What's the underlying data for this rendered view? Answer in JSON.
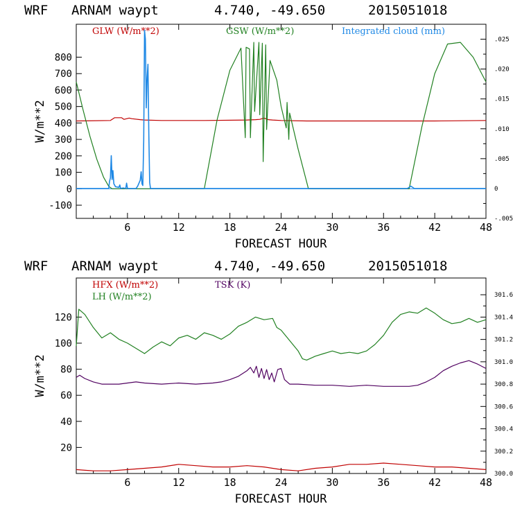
{
  "chart_data": [
    {
      "type": "line",
      "header": {
        "model": "WRF",
        "site": "ARNAM waypt",
        "coords": "4.740, -49.650",
        "run": "2015051018"
      },
      "xlabel": "FORECAST HOUR",
      "ylabel": "W/m**2",
      "xlim": [
        0,
        48
      ],
      "ylim": [
        -180,
        1000
      ],
      "y2lim": [
        -0.005,
        0.0275
      ],
      "xticks": [
        6,
        12,
        18,
        24,
        30,
        36,
        42,
        48
      ],
      "yticks": [
        -100,
        0,
        100,
        200,
        300,
        400,
        500,
        600,
        700,
        800
      ],
      "y2ticks": [
        -0.005,
        0,
        0.005,
        0.01,
        0.015,
        0.02,
        0.025
      ],
      "y2ticklabels": [
        "-.005",
        "0",
        ".005",
        ".010",
        ".015",
        ".020",
        ".025"
      ],
      "legend": [
        {
          "label": "GLW (W/m**2)",
          "color": "#c00000"
        },
        {
          "label": "GSW (W/m**2)",
          "color": "#208020"
        },
        {
          "label": "Integrated cloud (mm)",
          "color": "#1e88e5"
        }
      ],
      "series": [
        {
          "name": "GLW",
          "color": "#c00000",
          "axis": "left",
          "x": [
            0,
            4,
            4.5,
            5.3,
            5.6,
            6.2,
            6.5,
            7.5,
            8,
            10,
            15,
            20,
            21,
            21.5,
            22,
            22.5,
            23,
            24,
            27,
            30,
            36,
            42,
            48
          ],
          "y": [
            412,
            415,
            432,
            432,
            422,
            430,
            426,
            420,
            418,
            415,
            415,
            418,
            420,
            422,
            430,
            420,
            418,
            415,
            412,
            412,
            412,
            412,
            415
          ]
        },
        {
          "name": "GSW",
          "color": "#208020",
          "axis": "left",
          "x": [
            0,
            0.8,
            1.6,
            2.4,
            3.2,
            3.8,
            4.2,
            15.0,
            16.5,
            18,
            19.3,
            19.8,
            19.9,
            20.3,
            20.4,
            20.8,
            20.9,
            21.4,
            21.5,
            21.8,
            21.9,
            22.2,
            22.3,
            22.7,
            23.5,
            24.0,
            24.6,
            24.7,
            24.9,
            25.0,
            26,
            27.2,
            39.0,
            40.5,
            42,
            43.5,
            45,
            46.5,
            48
          ],
          "y": [
            650,
            480,
            320,
            180,
            70,
            15,
            0,
            0,
            420,
            720,
            855,
            310,
            860,
            850,
            310,
            890,
            470,
            890,
            450,
            885,
            165,
            875,
            360,
            780,
            660,
            500,
            370,
            525,
            300,
            460,
            240,
            0,
            0,
            380,
            700,
            880,
            890,
            800,
            650
          ]
        },
        {
          "name": "Integrated cloud",
          "color": "#1e88e5",
          "axis": "right",
          "x": [
            0,
            3.8,
            3.9,
            4.0,
            4.1,
            4.2,
            4.3,
            4.4,
            4.6,
            5.0,
            5.1,
            5.2,
            5.5,
            5.8,
            5.9,
            6.0,
            7.0,
            7.2,
            7.5,
            7.6,
            7.7,
            7.8,
            7.9,
            8.0,
            8.1,
            8.2,
            8.3,
            8.4,
            8.5,
            8.6,
            8.7,
            9.0,
            38.8,
            39.2,
            39.6,
            48
          ],
          "y": [
            0,
            0,
            0.0012,
            0.0018,
            0.0055,
            0.0015,
            0.003,
            0.0008,
            0.0003,
            0.0002,
            0.0006,
            0,
            0.0001,
            0,
            0.0009,
            0,
            0,
            0.0004,
            0.0014,
            0.0028,
            0.0008,
            0.0005,
            0.008,
            0.0265,
            0.025,
            0.0135,
            0.0185,
            0.0208,
            0.009,
            0.001,
            0,
            0,
            0,
            0.0004,
            0,
            0
          ]
        }
      ]
    },
    {
      "type": "line",
      "header": {
        "model": "WRF",
        "site": "ARNAM waypt",
        "coords": "4.740, -49.650",
        "run": "2015051018"
      },
      "xlabel": "FORECAST HOUR",
      "ylabel": "W/m**2",
      "xlim": [
        0,
        48
      ],
      "ylim": [
        0,
        150
      ],
      "y2lim": [
        300.0,
        301.75
      ],
      "xticks": [
        6,
        12,
        18,
        24,
        30,
        36,
        42,
        48
      ],
      "yticks": [
        20,
        40,
        60,
        80,
        100,
        120
      ],
      "y2ticks": [
        300.0,
        300.2,
        300.4,
        300.6,
        300.8,
        301.0,
        301.2,
        301.4,
        301.6
      ],
      "y2ticklabels": [
        "300.0",
        "300.2",
        "300.4",
        "300.6",
        "300.8",
        "301.0",
        "301.2",
        "301.4",
        "301.6"
      ],
      "legend": [
        {
          "label": "HFX (W/m**2)",
          "color": "#c00000"
        },
        {
          "label": "LH  (W/m**2)",
          "color": "#208020"
        },
        {
          "label": "TSK (K)",
          "color": "#500060"
        }
      ],
      "series": [
        {
          "name": "HFX",
          "color": "#c00000",
          "axis": "left",
          "x": [
            0,
            2,
            4,
            6,
            8,
            10,
            12,
            14,
            16,
            18,
            20,
            22,
            24,
            26,
            28,
            30,
            32,
            34,
            36,
            38,
            40,
            42,
            44,
            46,
            48
          ],
          "y": [
            3,
            2,
            2,
            3,
            4,
            5,
            7,
            6,
            5,
            5,
            6,
            5,
            3,
            2,
            4,
            5,
            7,
            7,
            8,
            7,
            6,
            5,
            5,
            4,
            3
          ]
        },
        {
          "name": "LH",
          "color": "#208020",
          "axis": "left",
          "x": [
            0,
            0.3,
            1,
            2,
            3,
            4,
            5,
            6,
            7,
            8,
            9,
            10,
            11,
            12,
            13,
            14,
            15,
            16,
            17,
            18,
            19,
            20,
            21,
            22,
            23,
            23.5,
            24,
            25,
            26,
            26.5,
            27,
            28,
            29,
            30,
            31,
            32,
            33,
            34,
            35,
            36,
            37,
            38,
            39,
            40,
            41,
            42,
            43,
            44,
            45,
            46,
            47,
            48
          ],
          "y": [
            98,
            126,
            122,
            112,
            104,
            108,
            103,
            100,
            96,
            92,
            97,
            101,
            98,
            104,
            106,
            103,
            108,
            106,
            103,
            107,
            113,
            116,
            120,
            118,
            119,
            112,
            110,
            102,
            94,
            88,
            87,
            90,
            92,
            94,
            92,
            93,
            92,
            94,
            99,
            106,
            116,
            122,
            124,
            123,
            127,
            123,
            118,
            115,
            116,
            119,
            116,
            118
          ]
        },
        {
          "name": "TSK",
          "color": "#500060",
          "axis": "right",
          "x": [
            0,
            0.4,
            1,
            2,
            3,
            4,
            5,
            6,
            7,
            8,
            10,
            12,
            14,
            16,
            17,
            18,
            19,
            20,
            20.4,
            20.8,
            21.1,
            21.4,
            21.7,
            22.0,
            22.3,
            22.6,
            22.9,
            23.2,
            23.6,
            24.0,
            24.4,
            25,
            26,
            28,
            30,
            32,
            34,
            36,
            38,
            39,
            40,
            41,
            42,
            43,
            44,
            45,
            46,
            47,
            48
          ],
          "y": [
            300.86,
            300.88,
            300.85,
            300.82,
            300.8,
            300.8,
            300.8,
            300.81,
            300.82,
            300.81,
            300.8,
            300.81,
            300.8,
            300.81,
            300.82,
            300.84,
            300.87,
            300.92,
            300.95,
            300.9,
            300.96,
            300.86,
            300.94,
            300.85,
            300.93,
            300.84,
            300.9,
            300.82,
            300.93,
            300.94,
            300.84,
            300.8,
            300.8,
            300.79,
            300.79,
            300.78,
            300.79,
            300.78,
            300.78,
            300.78,
            300.79,
            300.82,
            300.86,
            300.92,
            300.96,
            300.99,
            301.01,
            300.98,
            300.94
          ]
        }
      ]
    }
  ]
}
